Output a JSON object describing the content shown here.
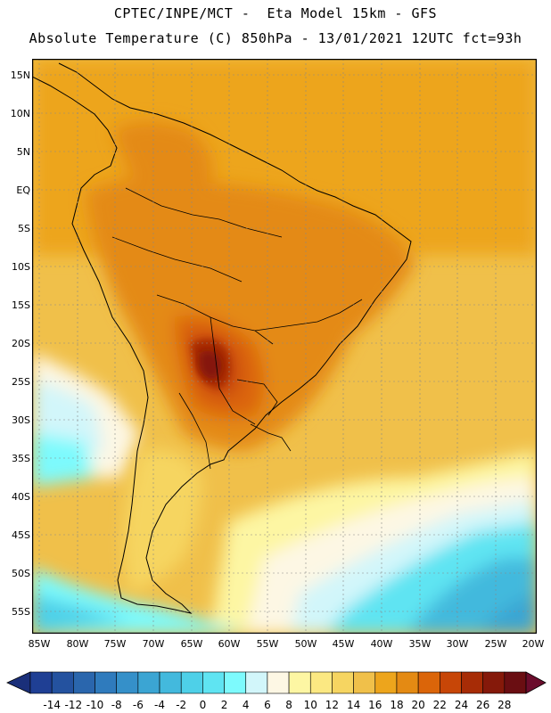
{
  "header": {
    "line1": "CPTEC/INPE/MCT -  Eta Model 15km - GFS",
    "line2": "Absolute Temperature (C) 850hPa - 13/01/2021 12UTC fct=93h"
  },
  "axes": {
    "lat_labels": [
      "15N",
      "10N",
      "5N",
      "EQ",
      "5S",
      "10S",
      "15S",
      "20S",
      "25S",
      "30S",
      "35S",
      "40S",
      "45S",
      "50S",
      "55S"
    ],
    "lon_labels": [
      "85W",
      "80W",
      "75W",
      "70W",
      "65W",
      "60W",
      "55W",
      "50W",
      "45W",
      "40W",
      "35W",
      "30W",
      "25W",
      "20W"
    ]
  },
  "legend": {
    "ticks": [
      "-14",
      "-12",
      "-10",
      "-8",
      "-6",
      "-4",
      "-2",
      "0",
      "2",
      "4",
      "6",
      "8",
      "10",
      "12",
      "14",
      "16",
      "18",
      "20",
      "22",
      "24",
      "26",
      "28"
    ],
    "colors": [
      "#1f3f94",
      "#24529f",
      "#2a66ad",
      "#2f7bbd",
      "#3590c9",
      "#3ba5d3",
      "#43b9dd",
      "#4ed0e8",
      "#5fe4f2",
      "#7dfafd",
      "#d2f6fa",
      "#fdf7e4",
      "#fdf6a3",
      "#fbe882",
      "#f6d561",
      "#f0c04a",
      "#eda51c",
      "#e48a13",
      "#db6509",
      "#c74607",
      "#a72c06",
      "#85190a",
      "#6a0e12"
    ],
    "low_color": "#1a2f7a",
    "high_color": "#6b0c2c"
  }
}
